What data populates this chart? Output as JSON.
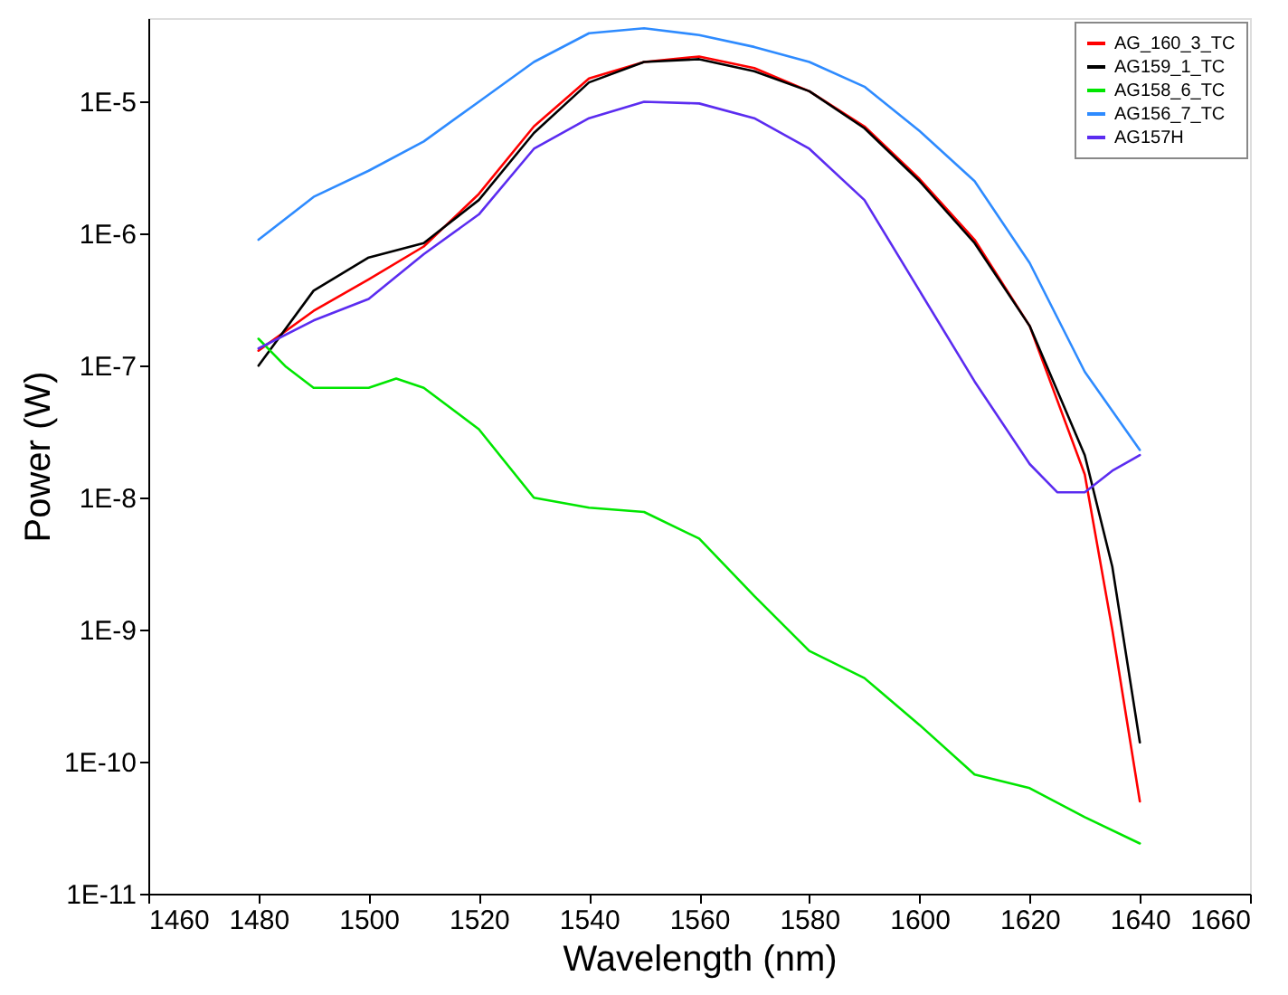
{
  "chart_data": {
    "type": "line",
    "xlabel": "Wavelength (nm)",
    "ylabel": "Power (W)",
    "log": "y",
    "grid": false,
    "legend": "top right",
    "marker": "none",
    "line_style": "solid",
    "xlim": [
      1460,
      1660
    ],
    "xticks": [
      1460,
      1480,
      1500,
      1520,
      1540,
      1560,
      1580,
      1600,
      1620,
      1640,
      1660
    ],
    "ylim": [
      1e-11,
      4.3e-05
    ],
    "yticks": [
      {
        "value": 1e-11,
        "label": "1E-11"
      },
      {
        "value": 1e-10,
        "label": "1E-10"
      },
      {
        "value": 1e-09,
        "label": "1E-9"
      },
      {
        "value": 1e-08,
        "label": "1E-8"
      },
      {
        "value": 1e-07,
        "label": "1E-7"
      },
      {
        "value": 1e-06,
        "label": "1E-6"
      },
      {
        "value": 1e-05,
        "label": "1E-5"
      }
    ],
    "series": [
      {
        "name": "AG_160_3_TC",
        "color": "#ff0000",
        "x": [
          1480,
          1490,
          1500,
          1510,
          1520,
          1530,
          1540,
          1550,
          1560,
          1570,
          1580,
          1590,
          1600,
          1610,
          1620,
          1630,
          1635,
          1640
        ],
        "values": [
          1.3e-07,
          2.6e-07,
          4.5e-07,
          8e-07,
          2e-06,
          6.5e-06,
          1.5e-05,
          2e-05,
          2.2e-05,
          1.8e-05,
          1.2e-05,
          6.5e-06,
          2.6e-06,
          9e-07,
          2e-07,
          1.5e-08,
          1e-09,
          5e-11
        ]
      },
      {
        "name": "AG159_1_TC",
        "color": "#000000",
        "x": [
          1480,
          1490,
          1500,
          1510,
          1520,
          1530,
          1540,
          1550,
          1560,
          1570,
          1580,
          1590,
          1600,
          1610,
          1620,
          1630,
          1635,
          1640
        ],
        "values": [
          1e-07,
          3.7e-07,
          6.6e-07,
          8.5e-07,
          1.8e-06,
          5.8e-06,
          1.4e-05,
          2e-05,
          2.1e-05,
          1.7e-05,
          1.2e-05,
          6.3e-06,
          2.5e-06,
          8.5e-07,
          2e-07,
          2.1e-08,
          3e-09,
          1.4e-10
        ]
      },
      {
        "name": "AG158_6_TC",
        "color": "#00e600",
        "x": [
          1480,
          1485,
          1490,
          1500,
          1505,
          1510,
          1520,
          1530,
          1540,
          1550,
          1560,
          1570,
          1580,
          1590,
          1600,
          1610,
          1620,
          1630,
          1640
        ],
        "values": [
          1.6e-07,
          9.8e-08,
          6.8e-08,
          6.8e-08,
          8e-08,
          6.8e-08,
          3.3e-08,
          1e-08,
          8.4e-09,
          7.8e-09,
          4.9e-09,
          1.8e-09,
          6.9e-10,
          4.3e-10,
          1.9e-10,
          8e-11,
          6.3e-11,
          3.8e-11,
          2.4e-11
        ]
      },
      {
        "name": "AG156_7_TC",
        "color": "#2e8bff",
        "x": [
          1480,
          1490,
          1500,
          1510,
          1520,
          1530,
          1540,
          1550,
          1560,
          1570,
          1580,
          1590,
          1600,
          1610,
          1620,
          1630,
          1640
        ],
        "values": [
          9e-07,
          1.9e-06,
          3e-06,
          5e-06,
          1e-05,
          2e-05,
          3.3e-05,
          3.6e-05,
          3.2e-05,
          2.6e-05,
          2e-05,
          1.3e-05,
          6e-06,
          2.5e-06,
          6e-07,
          9e-08,
          2.3e-08
        ]
      },
      {
        "name": "AG157H",
        "color": "#5b2cf0",
        "x": [
          1480,
          1490,
          1500,
          1510,
          1520,
          1530,
          1540,
          1550,
          1560,
          1570,
          1580,
          1590,
          1600,
          1610,
          1620,
          1625,
          1630,
          1635,
          1640
        ],
        "values": [
          1.35e-07,
          2.2e-07,
          3.2e-07,
          7e-07,
          1.4e-06,
          4.4e-06,
          7.5e-06,
          1e-05,
          9.7e-06,
          7.5e-06,
          4.4e-06,
          1.8e-06,
          3.7e-07,
          7.6e-08,
          1.8e-08,
          1.1e-08,
          1.1e-08,
          1.6e-08,
          2.1e-08
        ]
      }
    ]
  }
}
